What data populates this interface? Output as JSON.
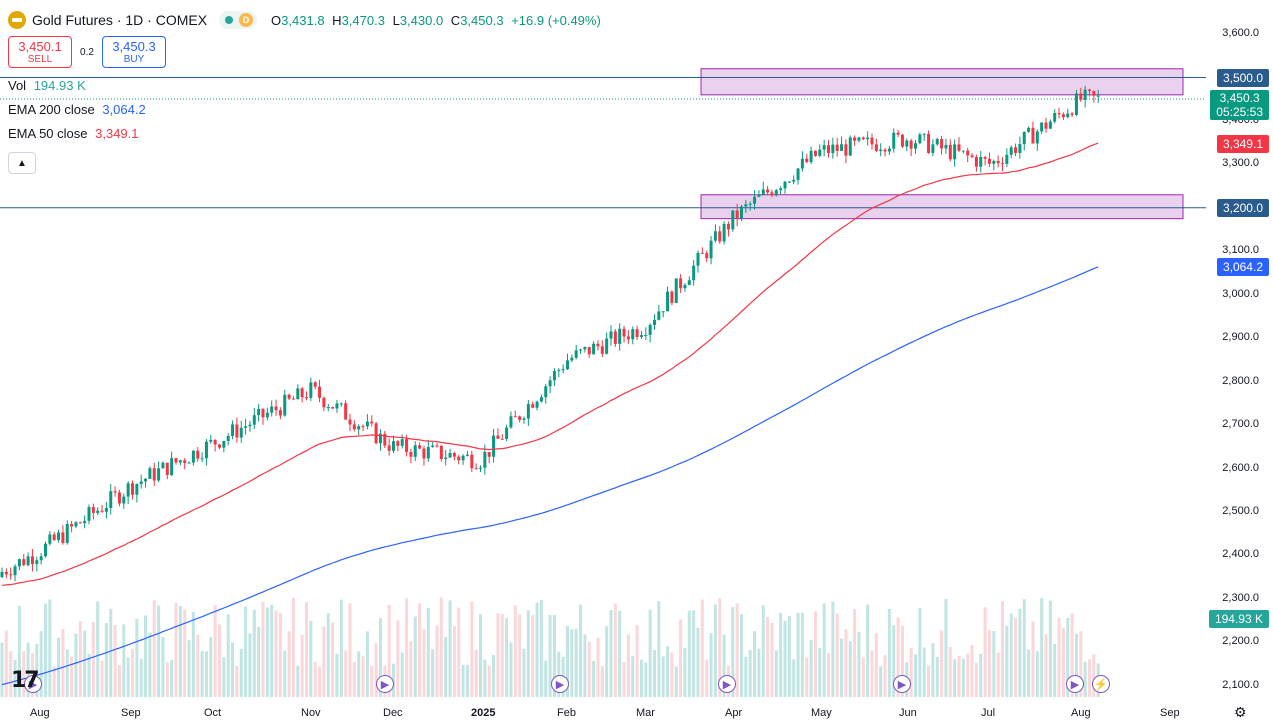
{
  "header": {
    "symbol_title": "Gold Futures · 1D · COMEX",
    "delay_badge": "D",
    "ohlc": [
      {
        "key": "O",
        "value": "3,431.8"
      },
      {
        "key": "H",
        "value": "3,470.3"
      },
      {
        "key": "L",
        "value": "3,430.0"
      },
      {
        "key": "C",
        "value": "3,450.3"
      },
      {
        "key": "",
        "value": "+16.9 (+0.49%)"
      }
    ]
  },
  "trade": {
    "sell_price": "3,450.1",
    "sell_label": "SELL",
    "spread": "0.2",
    "buy_price": "3,450.3",
    "buy_label": "BUY"
  },
  "indicators": {
    "vol_label": "Vol",
    "vol_value": "194.93 K",
    "ema200_label": "EMA 200 close",
    "ema200_value": "3,064.2",
    "ema50_label": "EMA 50 close",
    "ema50_value": "3,349.1"
  },
  "price_scale": {
    "ticks": [
      "3,600.0",
      "3,500.0",
      "3,400.0",
      "3,300.0",
      "3,200.0",
      "3,100.0",
      "3,000.0",
      "2,900.0",
      "2,800.0",
      "2,700.0",
      "2,600.0",
      "2,500.0",
      "2,400.0",
      "2,300.0",
      "2,200.0",
      "2,100.0"
    ],
    "pill_resistance": "3,500.0",
    "pill_price": "3,450.3",
    "pill_countdown": "05:25:53",
    "pill_ema50": "3,349.1",
    "pill_support": "3,200.0",
    "pill_ema200": "3,064.2",
    "pill_volume": "194.93 K"
  },
  "time_scale": {
    "ticks": [
      "Aug",
      "Sep",
      "Oct",
      "Nov",
      "Dec",
      "2025",
      "Feb",
      "Mar",
      "Apr",
      "May",
      "Jun",
      "Jul",
      "Aug",
      "Sep"
    ]
  },
  "colors": {
    "up": "#089981",
    "down": "#f23645",
    "ema200": "#2962ff",
    "ema50": "#f23645",
    "zone_fill": "#e1bee7",
    "zone_border": "#9c27b0",
    "level_line": "#2a5b8f"
  },
  "icons": {
    "events": "play-circle-icon",
    "flash": "lightning-icon",
    "settings": "gear-icon",
    "logo": "tradingview-logo"
  },
  "chart_data": {
    "type": "candlestick",
    "instrument": "Gold Futures",
    "interval": "1D",
    "ylim": [
      2080,
      3640
    ],
    "horizontal_levels": [
      3500,
      3200
    ],
    "zones": [
      [
        3460,
        3520
      ],
      [
        3175,
        3230
      ]
    ],
    "monthly_closes": {
      "x": [
        "Aug",
        "Sep",
        "Oct",
        "Nov",
        "Dec",
        "Jan",
        "Feb",
        "Mar",
        "Apr",
        "May",
        "Jun",
        "Jul",
        "Aug"
      ],
      "close": [
        2410,
        2560,
        2660,
        2780,
        2650,
        2620,
        2850,
        2930,
        3180,
        3330,
        3360,
        3300,
        3450
      ]
    },
    "ema200_end": 3064.2,
    "ema50_end": 3349.1,
    "last_volume": "194.93K"
  }
}
